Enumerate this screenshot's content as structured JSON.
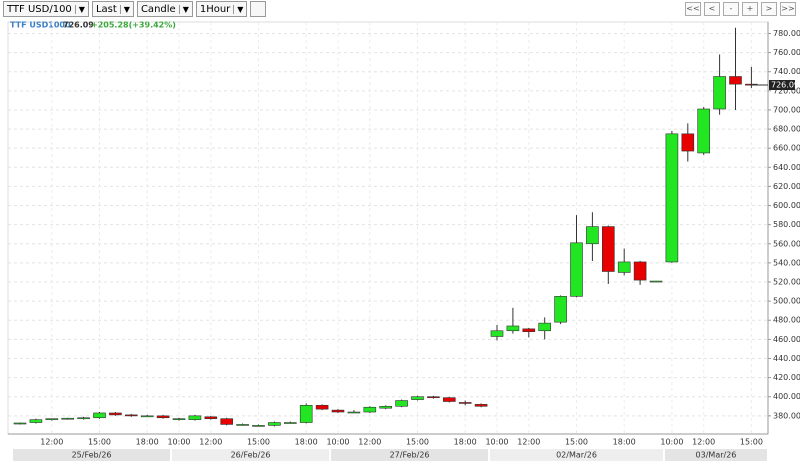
{
  "toolbar": {
    "symbol": "TTF USD/100",
    "price_type": "Last",
    "chart_style": "Candle",
    "interval": "1Hour",
    "nav_buttons": [
      "<<",
      "<",
      "-",
      "+",
      ">",
      ">>"
    ]
  },
  "chart_data": {
    "type": "candlestick",
    "instrument": "TTF USD1000",
    "last_price": 726.09,
    "change": "+205.28(+39.42%)",
    "categories": [
      null,
      null,
      "12:00",
      null,
      null,
      "15:00",
      null,
      null,
      "18:00",
      null,
      "10:00",
      null,
      "12:00",
      null,
      null,
      "15:00",
      null,
      null,
      "18:00",
      null,
      "10:00",
      null,
      "12:00",
      null,
      null,
      "15:00",
      null,
      null,
      "18:00",
      null,
      "10:00",
      null,
      "12:00",
      null,
      null,
      "15:00",
      null,
      null,
      "18:00",
      null,
      null,
      "10:00",
      null,
      "12:00",
      null,
      null,
      "15:00"
    ],
    "date_labels": [
      "25/Feb/26",
      "26/Feb/26",
      "27/Feb/26",
      "02/Mar/26",
      "03/Mar/26"
    ],
    "open": [
      372,
      373,
      376,
      377,
      377,
      378,
      383,
      381,
      380,
      380,
      376,
      376,
      379,
      377,
      371,
      370,
      370,
      373,
      373,
      391,
      386,
      384,
      384,
      388,
      390,
      397,
      400,
      399,
      394,
      392,
      463,
      469,
      471,
      469,
      478,
      505,
      560,
      578,
      530,
      541,
      521,
      541,
      675,
      655,
      701,
      735,
      727
    ],
    "high": [
      373,
      377,
      377,
      378,
      379,
      384,
      384,
      382,
      381,
      381,
      378,
      381,
      380,
      378,
      372,
      371,
      374,
      374,
      393,
      392,
      387,
      386,
      390,
      391,
      397,
      401,
      401,
      400,
      396,
      393,
      475,
      493,
      472,
      483,
      506,
      590,
      593,
      579,
      555,
      542,
      521,
      678,
      686,
      703,
      758,
      786,
      745
    ],
    "low": [
      371,
      372,
      375,
      376,
      376,
      377,
      380,
      379,
      379,
      377,
      375,
      375,
      376,
      370,
      370,
      369,
      369,
      372,
      372,
      386,
      383,
      383,
      383,
      387,
      389,
      396,
      398,
      394,
      391,
      389,
      459,
      466,
      462,
      460,
      476,
      504,
      542,
      518,
      527,
      517,
      520,
      540,
      646,
      653,
      695,
      700,
      723
    ],
    "close": [
      372.5,
      376,
      377,
      377.5,
      378,
      383,
      381,
      380,
      380,
      378,
      377,
      380,
      377,
      371,
      371,
      370,
      373,
      373,
      391,
      387,
      384,
      384,
      389,
      390,
      396,
      400,
      399,
      395,
      393,
      390,
      469,
      474,
      468,
      477,
      505,
      561,
      578,
      531,
      541,
      522,
      521,
      675,
      657,
      701,
      735,
      727,
      726
    ],
    "up_color": "#22e622",
    "down_color": "#e60000",
    "ylim": [
      361,
      792
    ],
    "yticks": [
      {
        "value": 380,
        "label": "380.00"
      },
      {
        "value": 400,
        "label": "400.00"
      },
      {
        "value": 420,
        "label": "420.00"
      },
      {
        "value": 440,
        "label": "440.00"
      },
      {
        "value": 460,
        "label": "460.00"
      },
      {
        "value": 480,
        "label": "480.00"
      },
      {
        "value": 500,
        "label": "500.00"
      },
      {
        "value": 520,
        "label": "520.00"
      },
      {
        "value": 540,
        "label": "540.00"
      },
      {
        "value": 560,
        "label": "560.00"
      },
      {
        "value": 580,
        "label": "580.00"
      },
      {
        "value": 600,
        "label": "600.00"
      },
      {
        "value": 620,
        "label": "620.00"
      },
      {
        "value": 640,
        "label": "640.00"
      },
      {
        "value": 660,
        "label": "660.00"
      },
      {
        "value": 680,
        "label": "680.00"
      },
      {
        "value": 700,
        "label": "700.00"
      },
      {
        "value": 720,
        "label": "720.00"
      },
      {
        "value": 740,
        "label": "740.00"
      },
      {
        "value": 760,
        "label": "760.00"
      },
      {
        "value": 780,
        "label": "780.00"
      }
    ],
    "grid": true
  }
}
